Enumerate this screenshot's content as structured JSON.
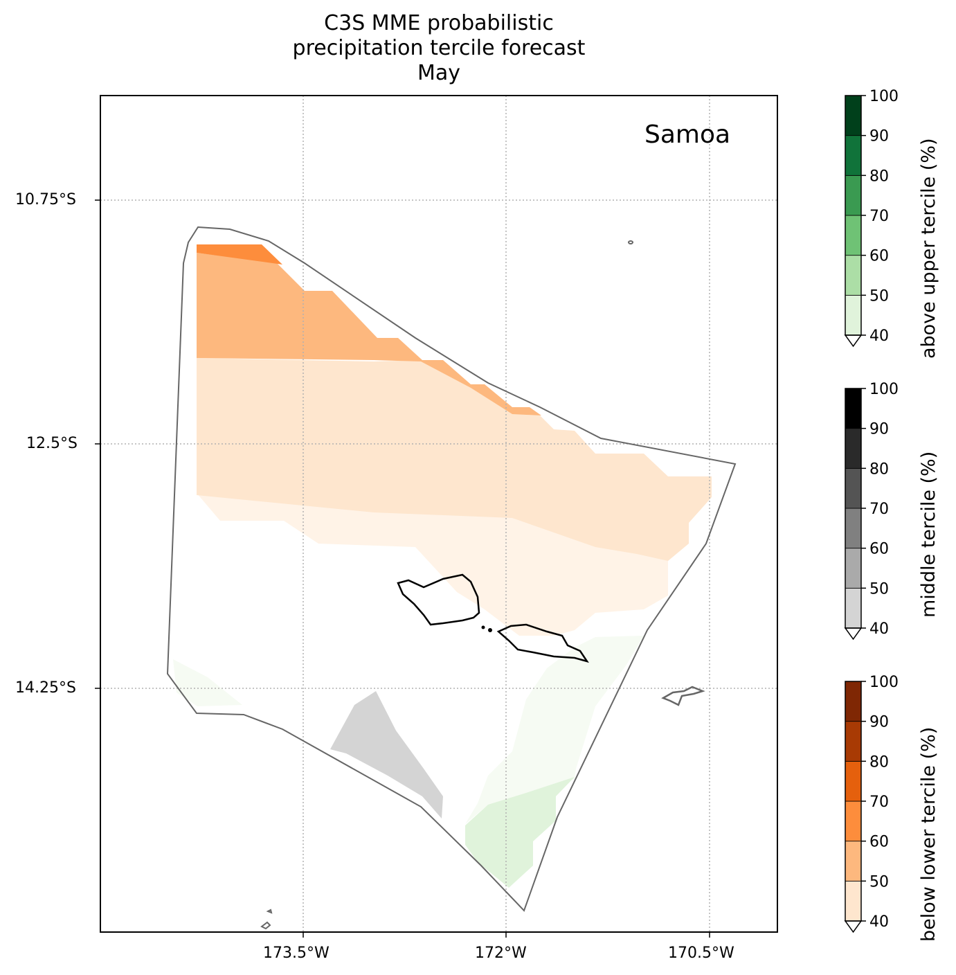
{
  "title_lines": [
    "C3S MME probabilistic",
    "precipitation tercile forecast",
    "May"
  ],
  "region_label": "Samoa",
  "map": {
    "x_ticks": [
      {
        "lon": -173.5,
        "label": "173.5°W"
      },
      {
        "lon": -172.0,
        "label": "172°W"
      },
      {
        "lon": -170.5,
        "label": "170.5°W"
      }
    ],
    "y_ticks": [
      {
        "lat": -10.75,
        "label": "10.75°S"
      },
      {
        "lat": -12.5,
        "label": "12.5°S"
      },
      {
        "lat": -14.25,
        "label": "14.25°S"
      }
    ]
  },
  "colorbars": [
    {
      "name": "above",
      "label": "above upper tercile (%)",
      "ticks": [
        "40",
        "50",
        "60",
        "70",
        "80",
        "90",
        "100"
      ],
      "colors": [
        "#e0f3db",
        "#acdea6",
        "#6fc275",
        "#3a9a51",
        "#10733a",
        "#00401b"
      ]
    },
    {
      "name": "middle",
      "label": "middle tercile (%)",
      "ticks": [
        "40",
        "50",
        "60",
        "70",
        "80",
        "90",
        "100"
      ],
      "colors": [
        "#d4d4d4",
        "#aaaaaa",
        "#808080",
        "#545454",
        "#2a2a2a",
        "#000000"
      ]
    },
    {
      "name": "below",
      "label": "below lower tercile (%)",
      "ticks": [
        "40",
        "50",
        "60",
        "70",
        "80",
        "90",
        "100"
      ],
      "colors": [
        "#fee6ce",
        "#fdb87e",
        "#fd8d3c",
        "#e5600d",
        "#a83a04",
        "#7f2704"
      ]
    }
  ],
  "category_colors": {
    "below_40_50": "#fee6ce",
    "below_50_60": "#fdb87e",
    "below_60_70": "#fd8d3c",
    "below_under_40": "#fff3e7",
    "middle_40_50": "#d4d4d4",
    "above_40_50": "#e0f3db",
    "above_under_40": "#f6fbf3"
  }
}
